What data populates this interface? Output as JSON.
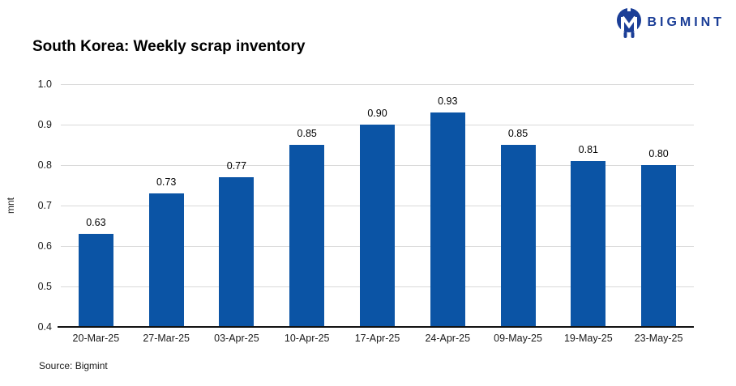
{
  "logo": {
    "brand": "BIGMINT",
    "color": "#1b3e97"
  },
  "header": {
    "title": "South Korea: Weekly scrap inventory"
  },
  "footer": {
    "source": "Source: Bigmint"
  },
  "chart_data": {
    "type": "bar",
    "title": "South Korea: Weekly scrap inventory",
    "categories": [
      "20-Mar-25",
      "27-Mar-25",
      "03-Apr-25",
      "10-Apr-25",
      "17-Apr-25",
      "24-Apr-25",
      "09-May-25",
      "19-May-25",
      "23-May-25"
    ],
    "values": [
      0.63,
      0.73,
      0.77,
      0.85,
      0.9,
      0.93,
      0.85,
      0.81,
      0.8
    ],
    "value_labels": [
      "0.63",
      "0.73",
      "0.77",
      "0.85",
      "0.90",
      "0.93",
      "0.85",
      "0.81",
      "0.80"
    ],
    "xlabel": "",
    "ylabel": "mnt",
    "ylim": [
      0.4,
      1.0
    ],
    "ytick_labels": [
      "1.0",
      "0.9",
      "0.8",
      "0.7",
      "0.6",
      "0.5",
      "0.4"
    ],
    "ytick_values": [
      1.0,
      0.9,
      0.8,
      0.7,
      0.6,
      0.5,
      0.4
    ],
    "grid": true,
    "legend": "none",
    "bar_color": "#0b54a5"
  }
}
